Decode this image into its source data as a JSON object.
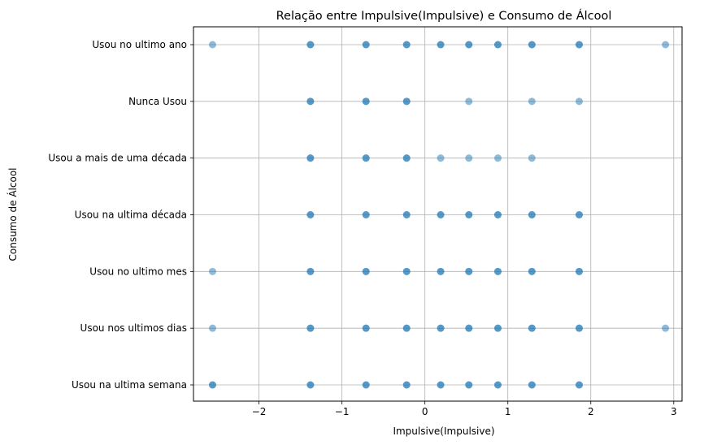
{
  "chart_data": {
    "type": "scatter",
    "title": "Relação entre Impulsive(Impulsive) e Consumo de Álcool",
    "xlabel": "Impulsive(Impulsive)",
    "ylabel": "Consumo de Álcool",
    "xlim": [
      -2.79,
      3.1
    ],
    "x_ticks": [
      -2,
      -1,
      0,
      1,
      2,
      3
    ],
    "x_tick_labels": [
      "−2",
      "−1",
      "0",
      "1",
      "2",
      "3"
    ],
    "categories": [
      "Usou na ultima semana",
      "Usou nos ultimos dias",
      "Usou no ultimo mes",
      "Usou na ultima década",
      "Usou a mais de uma década",
      "Nunca Usou",
      "Usou no ultimo ano"
    ],
    "grid": true,
    "marker_color": "#1f77b4",
    "points": [
      {
        "category": "Usou no ultimo ano",
        "x": [
          -2.56,
          -1.38,
          -1.38,
          -0.71,
          -0.71,
          -0.22,
          -0.22,
          0.19,
          0.19,
          0.53,
          0.53,
          0.88,
          0.88,
          1.29,
          1.29,
          1.86,
          1.86,
          2.9
        ]
      },
      {
        "category": "Nunca Usou",
        "x": [
          -1.38,
          -1.38,
          -0.71,
          -0.71,
          -0.22,
          -0.22,
          0.53,
          1.29,
          1.86
        ]
      },
      {
        "category": "Usou a mais de uma década",
        "x": [
          -1.38,
          -1.38,
          -0.71,
          -0.71,
          -0.22,
          -0.22,
          0.19,
          0.53,
          0.88,
          1.29
        ]
      },
      {
        "category": "Usou na ultima década",
        "x": [
          -1.38,
          -1.38,
          -0.71,
          -0.71,
          -0.22,
          -0.22,
          0.19,
          0.19,
          0.53,
          0.53,
          0.88,
          0.88,
          1.29,
          1.29,
          1.86,
          1.86
        ]
      },
      {
        "category": "Usou no ultimo mes",
        "x": [
          -2.56,
          -1.38,
          -1.38,
          -0.71,
          -0.71,
          -0.22,
          -0.22,
          0.19,
          0.19,
          0.53,
          0.53,
          0.88,
          0.88,
          1.29,
          1.29,
          1.86,
          1.86
        ]
      },
      {
        "category": "Usou nos ultimos dias",
        "x": [
          -2.56,
          -1.38,
          -1.38,
          -0.71,
          -0.71,
          -0.22,
          -0.22,
          0.19,
          0.19,
          0.53,
          0.53,
          0.88,
          0.88,
          1.29,
          1.29,
          1.86,
          1.86,
          2.9
        ]
      },
      {
        "category": "Usou na ultima semana",
        "x": [
          -2.56,
          -2.56,
          -1.38,
          -1.38,
          -0.71,
          -0.71,
          -0.22,
          -0.22,
          0.19,
          0.19,
          0.53,
          0.53,
          0.88,
          0.88,
          1.29,
          1.29,
          1.86,
          1.86
        ]
      }
    ]
  }
}
